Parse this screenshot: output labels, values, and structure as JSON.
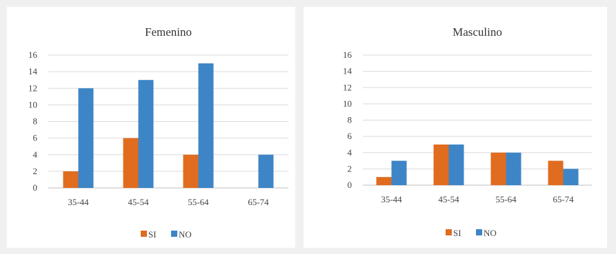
{
  "chart_data": [
    {
      "type": "bar",
      "title": "Femenino",
      "categories": [
        "35-44",
        "45-54",
        "55-64",
        "65-74"
      ],
      "series": [
        {
          "name": "SI",
          "values": [
            2,
            6,
            4,
            0
          ],
          "color": "#e06c20"
        },
        {
          "name": "NO",
          "values": [
            12,
            13,
            15,
            4
          ],
          "color": "#3d85c6"
        }
      ],
      "ylim": [
        0,
        16
      ],
      "yticks": [
        0,
        2,
        4,
        6,
        8,
        10,
        12,
        14,
        16
      ],
      "grid": true,
      "legend_position": "bottom-center"
    },
    {
      "type": "bar",
      "title": "Masculino",
      "categories": [
        "35-44",
        "45-54",
        "55-64",
        "65-74"
      ],
      "series": [
        {
          "name": "SI",
          "values": [
            1,
            5,
            4,
            3
          ],
          "color": "#e06c20"
        },
        {
          "name": "NO",
          "values": [
            3,
            5,
            4,
            2
          ],
          "color": "#3d85c6"
        }
      ],
      "ylim": [
        0,
        16
      ],
      "yticks": [
        0,
        2,
        4,
        6,
        8,
        10,
        12,
        14,
        16
      ],
      "grid": true,
      "legend_position": "bottom-center"
    }
  ]
}
